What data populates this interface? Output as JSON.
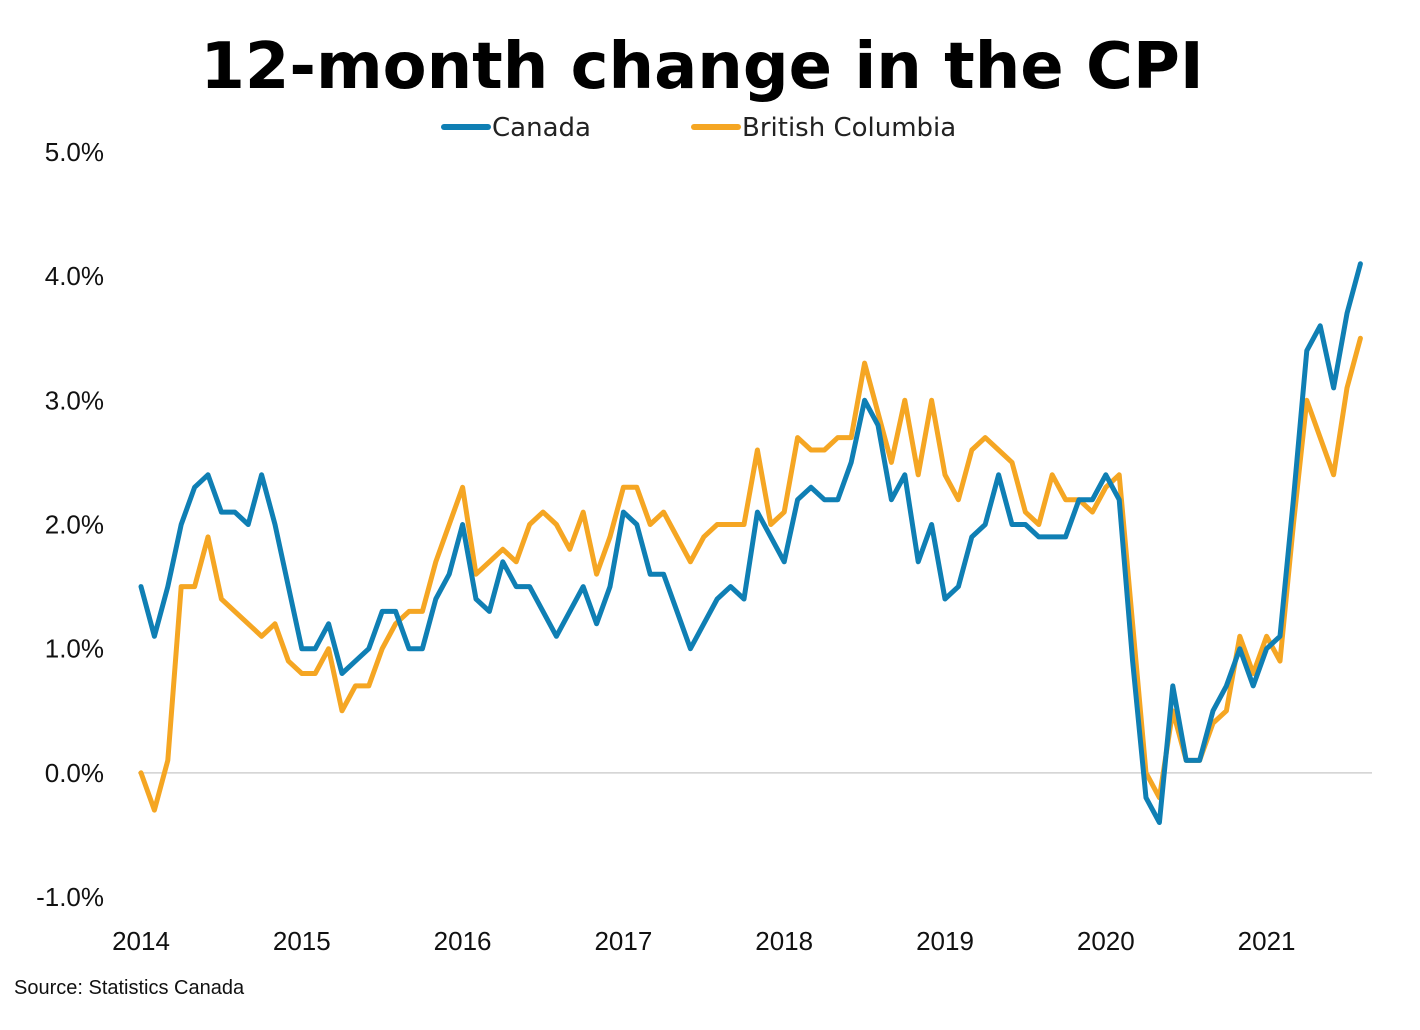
{
  "chart_data": {
    "type": "line",
    "title": "12-month change in the CPI",
    "source": "Source: Statistics Canada",
    "xlabel": "",
    "ylabel": "",
    "x_start": "2014-01",
    "x_end": "2021-08",
    "x_ticks": [
      "2014",
      "2015",
      "2016",
      "2017",
      "2018",
      "2019",
      "2020",
      "2021"
    ],
    "y_ticks": [
      "-1.0%",
      "0.0%",
      "1.0%",
      "2.0%",
      "3.0%",
      "4.0%",
      "5.0%"
    ],
    "ylim": [
      -1.0,
      5.0
    ],
    "grid": "zero line only",
    "legend_position": "top-center",
    "series": [
      {
        "name": "Canada",
        "color": "#0f7fb4",
        "values": [
          1.5,
          1.1,
          1.5,
          2.0,
          2.3,
          2.4,
          2.1,
          2.1,
          2.0,
          2.4,
          2.0,
          1.5,
          1.0,
          1.0,
          1.2,
          0.8,
          0.9,
          1.0,
          1.3,
          1.3,
          1.0,
          1.0,
          1.4,
          1.6,
          2.0,
          1.4,
          1.3,
          1.7,
          1.5,
          1.5,
          1.3,
          1.1,
          1.3,
          1.5,
          1.2,
          1.5,
          2.1,
          2.0,
          1.6,
          1.6,
          1.3,
          1.0,
          1.2,
          1.4,
          1.5,
          1.4,
          2.1,
          1.9,
          1.7,
          2.2,
          2.3,
          2.2,
          2.2,
          2.5,
          3.0,
          2.8,
          2.2,
          2.4,
          1.7,
          2.0,
          1.4,
          1.5,
          1.9,
          2.0,
          2.4,
          2.0,
          2.0,
          1.9,
          1.9,
          1.9,
          2.2,
          2.2,
          2.4,
          2.2,
          0.9,
          -0.2,
          -0.4,
          0.7,
          0.1,
          0.1,
          0.5,
          0.7,
          1.0,
          0.7,
          1.0,
          1.1,
          2.2,
          3.4,
          3.6,
          3.1,
          3.7,
          4.1
        ]
      },
      {
        "name": "British Columbia",
        "color": "#f5a623",
        "values": [
          0.0,
          -0.3,
          0.1,
          1.5,
          1.5,
          1.9,
          1.4,
          1.3,
          1.2,
          1.1,
          1.2,
          0.9,
          0.8,
          0.8,
          1.0,
          0.5,
          0.7,
          0.7,
          1.0,
          1.2,
          1.3,
          1.3,
          1.7,
          2.0,
          2.3,
          1.6,
          1.7,
          1.8,
          1.7,
          2.0,
          2.1,
          2.0,
          1.8,
          2.1,
          1.6,
          1.9,
          2.3,
          2.3,
          2.0,
          2.1,
          1.9,
          1.7,
          1.9,
          2.0,
          2.0,
          2.0,
          2.6,
          2.0,
          2.1,
          2.7,
          2.6,
          2.6,
          2.7,
          2.7,
          3.3,
          2.9,
          2.5,
          3.0,
          2.4,
          3.0,
          2.4,
          2.2,
          2.6,
          2.7,
          2.6,
          2.5,
          2.1,
          2.0,
          2.4,
          2.2,
          2.2,
          2.1,
          2.3,
          2.4,
          1.2,
          0.0,
          -0.2,
          0.5,
          0.1,
          0.1,
          0.4,
          0.5,
          1.1,
          0.8,
          1.1,
          0.9,
          2.0,
          3.0,
          2.7,
          2.4,
          3.1,
          3.5
        ]
      }
    ]
  }
}
